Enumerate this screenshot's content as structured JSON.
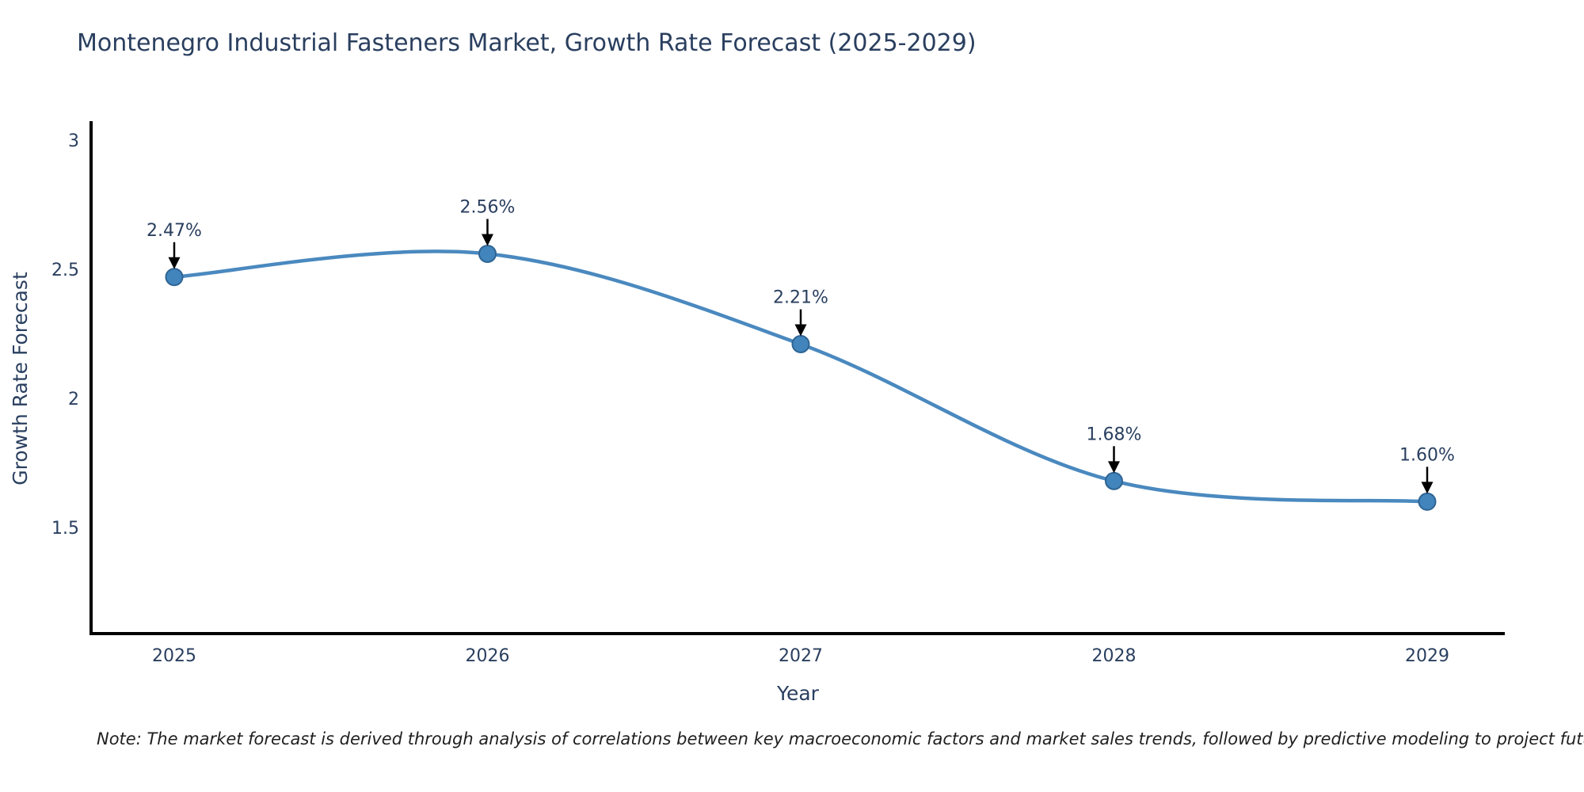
{
  "chart_data": {
    "type": "line",
    "title": "Montenegro Industrial Fasteners Market, Growth Rate Forecast (2025-2029)",
    "xlabel": "Year",
    "ylabel": "Growth Rate Forecast",
    "x": [
      2025,
      2026,
      2027,
      2028,
      2029
    ],
    "series": [
      {
        "name": "Growth Rate Forecast",
        "values": [
          2.47,
          2.56,
          2.21,
          1.68,
          1.6
        ]
      }
    ],
    "point_labels": [
      "2.47%",
      "2.56%",
      "2.21%",
      "1.68%",
      "1.60%"
    ],
    "yticks": [
      3,
      2.5,
      2,
      1.5
    ],
    "ylim": [
      1.09,
      3.08
    ],
    "grid": false,
    "legend": "none",
    "curve": "spline",
    "colors": {
      "line": "#4a89bf",
      "marker": "#4285bd",
      "marker_edge": "#2e6493",
      "axis": "#000000",
      "text": "#2a3f5f",
      "arrow": "#000000"
    }
  },
  "note": "Note: The market forecast is derived through analysis of correlations between key macroeconomic factors and market sales trends, followed by predictive modeling to project future sales"
}
